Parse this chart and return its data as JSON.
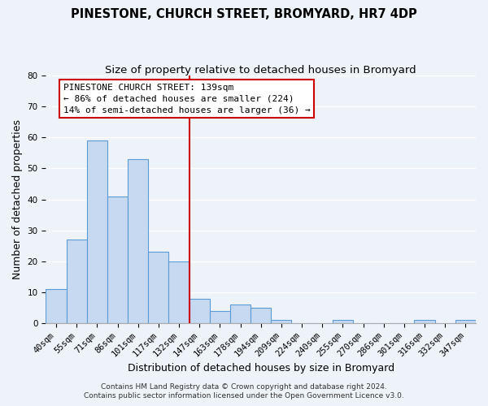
{
  "title": "PINESTONE, CHURCH STREET, BROMYARD, HR7 4DP",
  "subtitle": "Size of property relative to detached houses in Bromyard",
  "xlabel": "Distribution of detached houses by size in Bromyard",
  "ylabel": "Number of detached properties",
  "bar_labels": [
    "40sqm",
    "55sqm",
    "71sqm",
    "86sqm",
    "101sqm",
    "117sqm",
    "132sqm",
    "147sqm",
    "163sqm",
    "178sqm",
    "194sqm",
    "209sqm",
    "224sqm",
    "240sqm",
    "255sqm",
    "270sqm",
    "286sqm",
    "301sqm",
    "316sqm",
    "332sqm",
    "347sqm"
  ],
  "bar_values": [
    11,
    27,
    59,
    41,
    53,
    23,
    20,
    8,
    4,
    6,
    5,
    1,
    0,
    0,
    1,
    0,
    0,
    0,
    1,
    0,
    1
  ],
  "bar_color": "#c6d9f0",
  "bar_edge_color": "#5b9bd5",
  "vline_x": 6.5,
  "vline_color": "#cc0000",
  "annotation_title": "PINESTONE CHURCH STREET: 139sqm",
  "annotation_line1": "← 86% of detached houses are smaller (224)",
  "annotation_line2": "14% of semi-detached houses are larger (36) →",
  "annotation_box_color": "#ffffff",
  "annotation_box_edge": "#cc0000",
  "ylim": [
    0,
    80
  ],
  "yticks": [
    0,
    10,
    20,
    30,
    40,
    50,
    60,
    70,
    80
  ],
  "footer1": "Contains HM Land Registry data © Crown copyright and database right 2024.",
  "footer2": "Contains public sector information licensed under the Open Government Licence v3.0.",
  "background_color": "#eef2f9",
  "grid_color": "#ffffff",
  "title_fontsize": 10.5,
  "subtitle_fontsize": 9.5,
  "axis_label_fontsize": 9,
  "tick_fontsize": 7.5,
  "annotation_fontsize": 8,
  "footer_fontsize": 6.5
}
